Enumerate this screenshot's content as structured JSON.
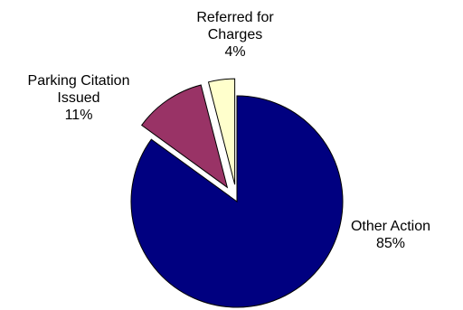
{
  "chart_data": {
    "type": "pie",
    "title": "",
    "legend": "none",
    "slices": [
      {
        "category_lines": [
          "Other Action"
        ],
        "value": 85,
        "value_label": "85%",
        "color": "#000080",
        "exploded": false
      },
      {
        "category_lines": [
          "Parking Citation",
          "Issued"
        ],
        "value": 11,
        "value_label": "11%",
        "color": "#993366",
        "exploded": true
      },
      {
        "category_lines": [
          "Referred for",
          "Charges"
        ],
        "value": 4,
        "value_label": "4%",
        "color": "#FFFFCC",
        "exploded": true
      }
    ]
  }
}
